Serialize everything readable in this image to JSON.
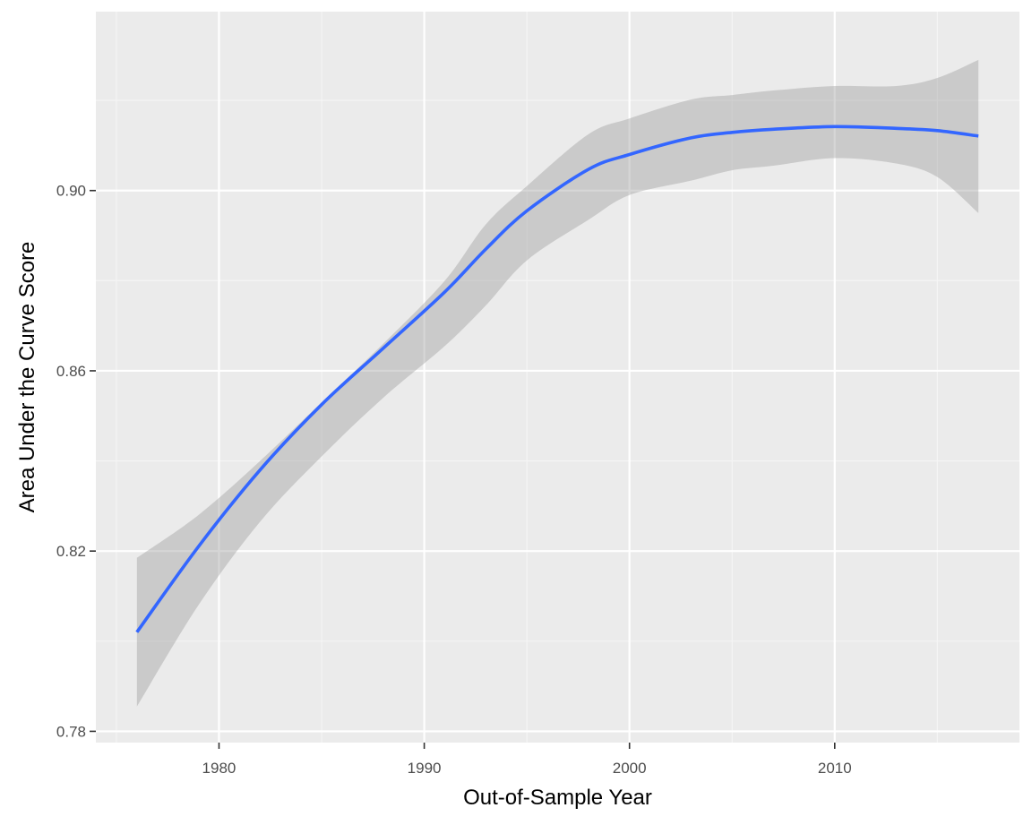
{
  "chart_data": {
    "type": "line",
    "title": "",
    "xlabel": "Out-of-Sample Year",
    "ylabel": "Area Under the Curve Score",
    "xlim": [
      1974.0,
      2019.0
    ],
    "ylim": [
      0.7775,
      0.9397
    ],
    "x_ticks": [
      1980,
      1990,
      2000,
      2010
    ],
    "x_tick_labels": [
      "1980",
      "1990",
      "2000",
      "2010"
    ],
    "x_minor_ticks": [
      1975,
      1985,
      1995,
      2005,
      2015
    ],
    "y_ticks": [
      0.78,
      0.82,
      0.86,
      0.9
    ],
    "y_tick_labels": [
      "0.78",
      "0.82",
      "0.86",
      "0.90"
    ],
    "y_minor_ticks": [
      0.8,
      0.84,
      0.88,
      0.92
    ],
    "grid": true,
    "legend": "none",
    "colors": {
      "panel_background": "#EBEBEB",
      "grid_major": "#FFFFFF",
      "grid_minor": "#F5F5F5",
      "line": "#3366FF",
      "ribbon": "#999999"
    },
    "series": [
      {
        "x": [
          1976,
          1979,
          1982,
          1985,
          1988,
          1991,
          1993,
          1995,
          1998,
          2000,
          2003,
          2005,
          2007,
          2010,
          2013,
          2015,
          2017
        ],
        "y": [
          0.802,
          0.821,
          0.838,
          0.8525,
          0.865,
          0.8775,
          0.887,
          0.8955,
          0.9047,
          0.908,
          0.9117,
          0.9129,
          0.9136,
          0.9142,
          0.9138,
          0.9133,
          0.9121
        ],
        "ymin": [
          0.7855,
          0.808,
          0.8265,
          0.841,
          0.854,
          0.8655,
          0.8745,
          0.8845,
          0.8935,
          0.899,
          0.9022,
          0.9045,
          0.9055,
          0.9072,
          0.906,
          0.903,
          0.895
        ],
        "ymax": [
          0.8185,
          0.828,
          0.84,
          0.853,
          0.866,
          0.88,
          0.8925,
          0.901,
          0.9125,
          0.916,
          0.9202,
          0.9212,
          0.9222,
          0.9232,
          0.9232,
          0.925,
          0.929
        ]
      }
    ]
  }
}
